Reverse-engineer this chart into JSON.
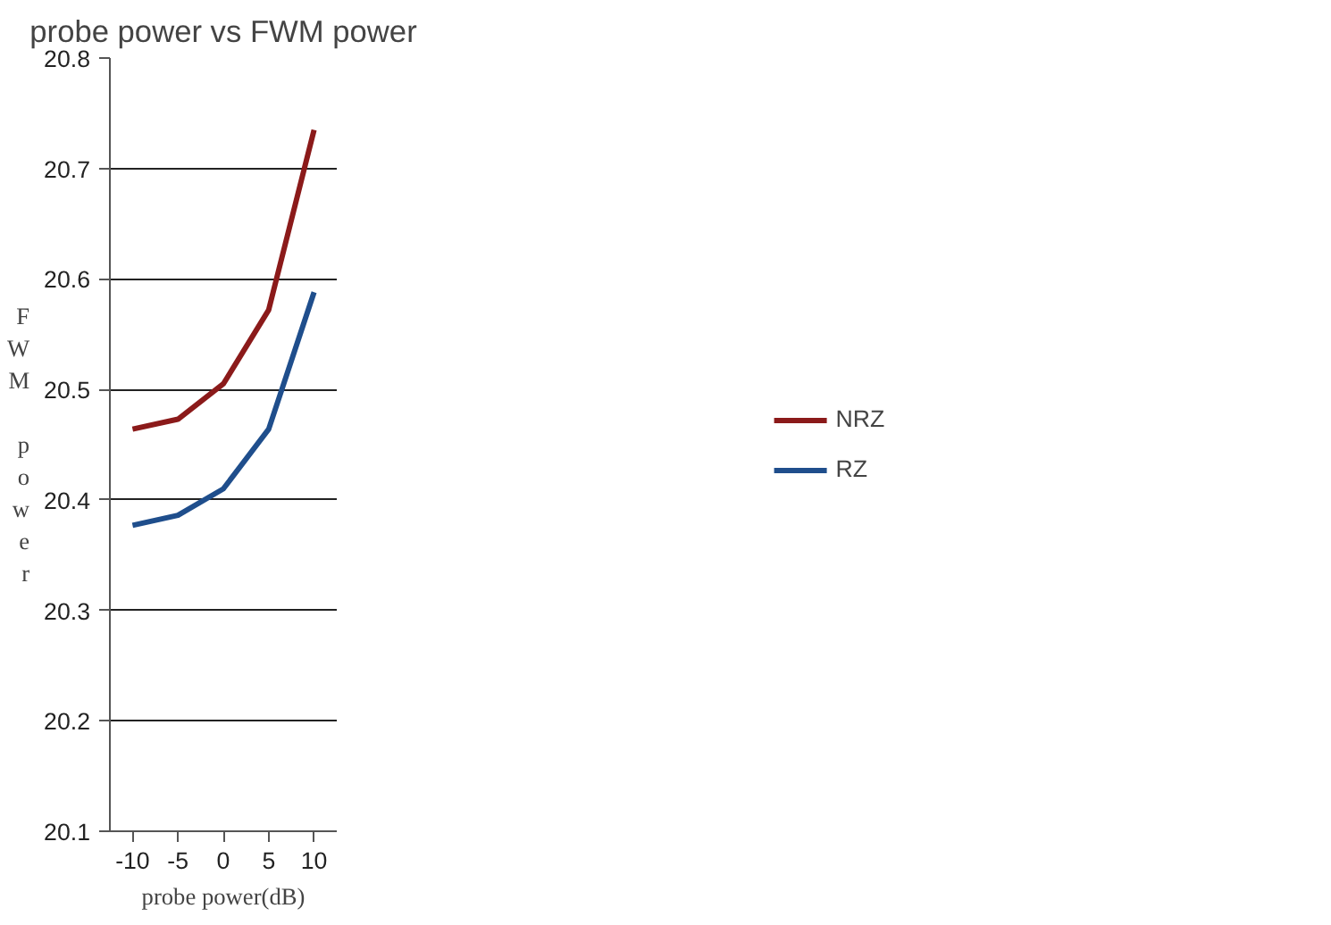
{
  "chart_data": {
    "type": "line",
    "title": "probe power vs FWM power",
    "xlabel": "probe power(dB)",
    "ylabel": "FWM power",
    "categories": [
      "-10",
      "-5",
      "0",
      "5",
      "10"
    ],
    "series": [
      {
        "name": "NRZ",
        "color": "#8b1a1a",
        "values": [
          20.464,
          20.473,
          20.505,
          20.572,
          20.735
        ]
      },
      {
        "name": "RZ",
        "color": "#1f4e8c",
        "values": [
          20.377,
          20.386,
          20.41,
          20.464,
          20.588
        ]
      }
    ],
    "ylim": [
      20.1,
      20.8
    ],
    "yticks": [
      20.1,
      20.2,
      20.3,
      20.4,
      20.5,
      20.6,
      20.7,
      20.8
    ],
    "grid": "y",
    "legend": "right"
  }
}
